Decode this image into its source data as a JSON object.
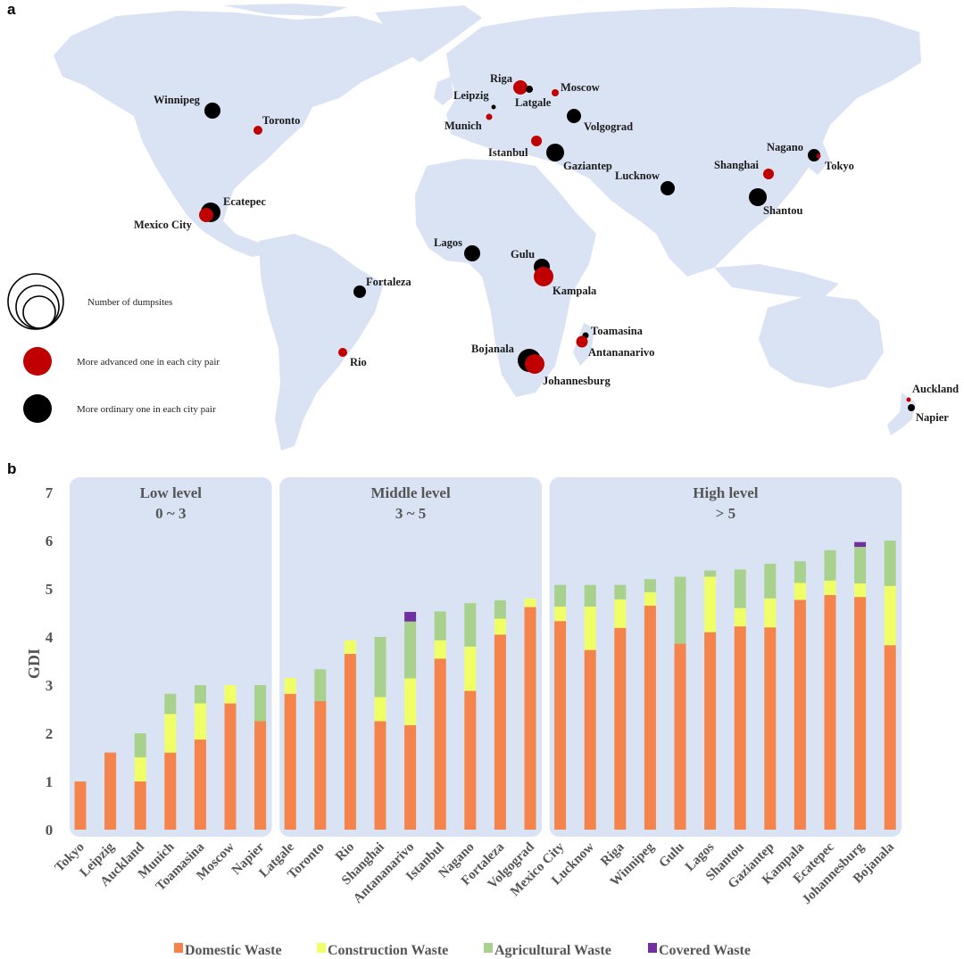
{
  "panel_a": {
    "letter": "a",
    "legend": {
      "size_text": "Number of dumpsites",
      "advanced_text": "More advanced one in each city pair",
      "ordinary_text": "More ordinary one in each city pair"
    },
    "colors": {
      "advanced": "#c00000",
      "ordinary": "#000000",
      "land": "#dae3f3"
    },
    "cities": [
      {
        "name": "Winnipeg",
        "type": "ordinary",
        "size": "medium"
      },
      {
        "name": "Toronto",
        "type": "advanced",
        "size": "small"
      },
      {
        "name": "Ecatepec",
        "type": "ordinary",
        "size": "large"
      },
      {
        "name": "Mexico City",
        "type": "advanced",
        "size": "medium"
      },
      {
        "name": "Fortaleza",
        "type": "ordinary",
        "size": "small"
      },
      {
        "name": "Rio",
        "type": "advanced",
        "size": "small"
      },
      {
        "name": "Riga",
        "type": "advanced",
        "size": "medium"
      },
      {
        "name": "Latgale",
        "type": "ordinary",
        "size": "tiny"
      },
      {
        "name": "Moscow",
        "type": "advanced",
        "size": "tiny"
      },
      {
        "name": "Leipzig",
        "type": "ordinary",
        "size": "dot"
      },
      {
        "name": "Munich",
        "type": "advanced",
        "size": "tiny"
      },
      {
        "name": "Volgograd",
        "type": "ordinary",
        "size": "medium"
      },
      {
        "name": "Istanbul",
        "type": "advanced",
        "size": "small"
      },
      {
        "name": "Gaziantep",
        "type": "ordinary",
        "size": "large"
      },
      {
        "name": "Lucknow",
        "type": "ordinary",
        "size": "medium"
      },
      {
        "name": "Nagano",
        "type": "ordinary",
        "size": "small"
      },
      {
        "name": "Tokyo",
        "type": "advanced",
        "size": "dot"
      },
      {
        "name": "Shanghai",
        "type": "advanced",
        "size": "small"
      },
      {
        "name": "Shantou",
        "type": "ordinary",
        "size": "large"
      },
      {
        "name": "Lagos",
        "type": "ordinary",
        "size": "medium"
      },
      {
        "name": "Gulu",
        "type": "ordinary",
        "size": "medium"
      },
      {
        "name": "Kampala",
        "type": "advanced",
        "size": "large"
      },
      {
        "name": "Toamasina",
        "type": "ordinary",
        "size": "tiny"
      },
      {
        "name": "Antananarivo",
        "type": "advanced",
        "size": "small"
      },
      {
        "name": "Bojanala",
        "type": "ordinary",
        "size": "xlarge"
      },
      {
        "name": "Johannesburg",
        "type": "advanced",
        "size": "large"
      },
      {
        "name": "Auckland",
        "type": "advanced",
        "size": "dot"
      },
      {
        "name": "Napier",
        "type": "ordinary",
        "size": "tiny"
      }
    ]
  },
  "panel_b": {
    "letter": "b",
    "bands": [
      {
        "title": "Low level",
        "range": "0 ~ 3",
        "first": 0,
        "last": 6
      },
      {
        "title": "Middle level",
        "range": "3 ~ 5",
        "first": 7,
        "last": 15
      },
      {
        "title": "High level",
        "range": "> 5",
        "first": 16,
        "last": 27
      }
    ],
    "band_color": "#dae3f3"
  },
  "chart_data": {
    "type": "bar",
    "stacked": true,
    "ylabel": "GDI",
    "xlabel": "",
    "ylim": [
      0,
      7
    ],
    "yticks": [
      "0",
      "1",
      "2",
      "3",
      "4",
      "5",
      "6",
      "7"
    ],
    "grid": false,
    "legend_position": "bottom",
    "categories": [
      "Tokyo",
      "Leipzig",
      "Auckland",
      "Munich",
      "Toamasina",
      "Moscow",
      "Napier",
      "Latgale",
      "Toronto",
      "Rio",
      "Shanghai",
      "Antananarivo",
      "Istanbul",
      "Nagano",
      "Fortaleza",
      "Volgograd",
      "Mexico City",
      "Lucknow",
      "Riga",
      "Winnipeg",
      "Gulu",
      "Lagos",
      "Shantou",
      "Gaziantep",
      "Kampala",
      "Ecatepec",
      "Johannesburg",
      "Bojanala"
    ],
    "series": [
      {
        "name": "Domestic Waste",
        "color": "#f4844c",
        "values": [
          1.0,
          1.6,
          1.0,
          1.6,
          1.87,
          2.62,
          2.25,
          2.82,
          2.67,
          3.65,
          2.25,
          2.17,
          3.55,
          2.88,
          4.05,
          4.62,
          4.33,
          3.73,
          4.19,
          4.65,
          3.86,
          4.1,
          4.22,
          4.2,
          4.77,
          4.87,
          4.83,
          3.83
        ]
      },
      {
        "name": "Construction Waste",
        "color": "#f0ff66",
        "values": [
          0,
          0,
          0.5,
          0.8,
          0.75,
          0.38,
          0,
          0.33,
          0,
          0.28,
          0.5,
          0.97,
          0.38,
          0.92,
          0.33,
          0.18,
          0.3,
          0.9,
          0.59,
          0.28,
          0,
          1.15,
          0.38,
          0.6,
          0.35,
          0.3,
          0.28,
          1.23
        ]
      },
      {
        "name": "Agricultural Waste",
        "color": "#a9d18e",
        "values": [
          0,
          0,
          0.5,
          0.42,
          0.38,
          0,
          0.75,
          0,
          0.66,
          0,
          1.25,
          1.18,
          0.6,
          0.9,
          0.38,
          0,
          0.45,
          0.45,
          0.3,
          0.27,
          1.39,
          0.13,
          0.8,
          0.72,
          0.45,
          0.63,
          0.76,
          0.94
        ]
      },
      {
        "name": "Covered Waste",
        "color": "#7030a0",
        "values": [
          0,
          0,
          0,
          0,
          0,
          0,
          0,
          0,
          0,
          0,
          0,
          0.2,
          0,
          0,
          0,
          0,
          0,
          0,
          0,
          0,
          0,
          0,
          0,
          0,
          0,
          0,
          0.1,
          0
        ]
      }
    ]
  }
}
